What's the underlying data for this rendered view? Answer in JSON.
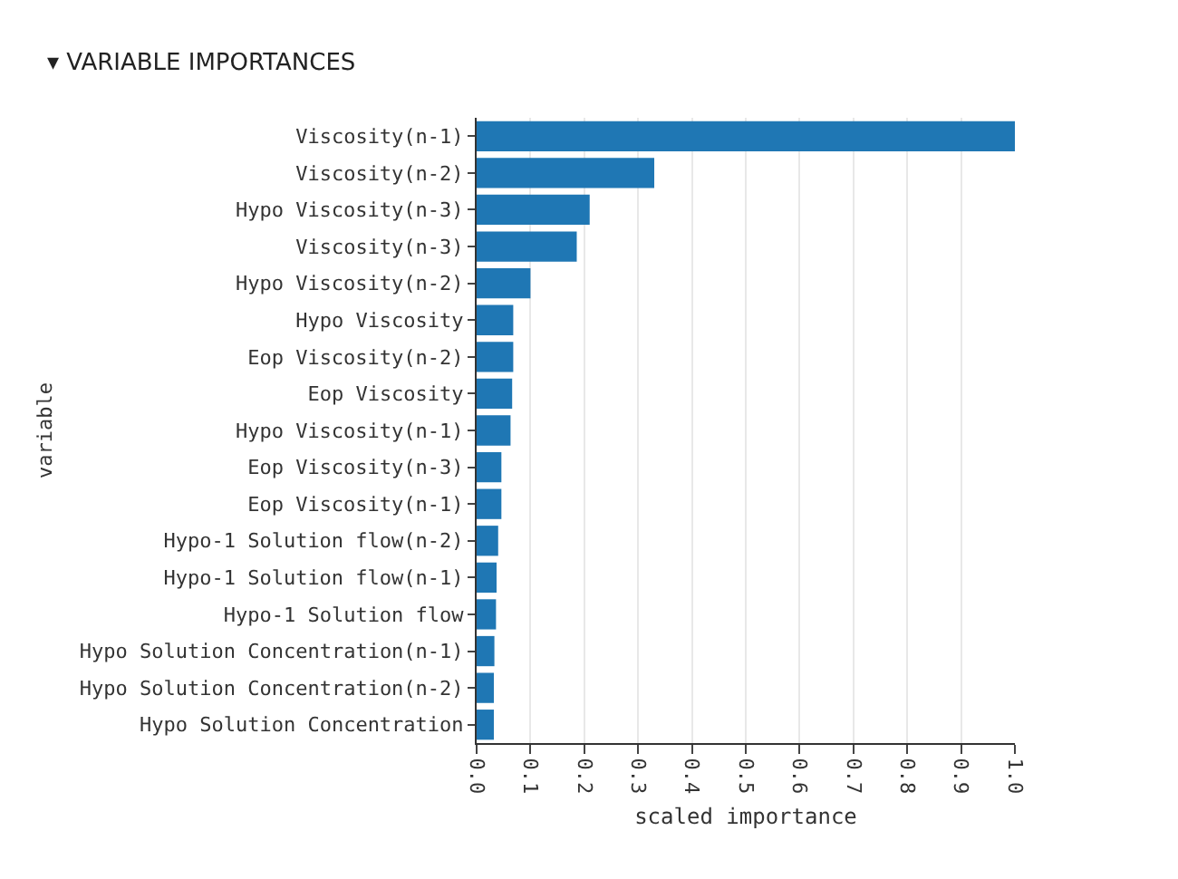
{
  "chart_data": {
    "type": "bar",
    "orientation": "horizontal",
    "title": "▾ VARIABLE IMPORTANCES",
    "xlabel": "scaled importance",
    "ylabel": "variable",
    "categories": [
      "Viscosity(n-1)",
      "Viscosity(n-2)",
      "Hypo Viscosity(n-3)",
      "Viscosity(n-3)",
      "Hypo Viscosity(n-2)",
      "Hypo Viscosity",
      "Eop Viscosity(n-2)",
      "Eop Viscosity",
      "Hypo Viscosity(n-1)",
      "Eop Viscosity(n-3)",
      "Eop Viscosity(n-1)",
      "Hypo-1 Solution flow(n-2)",
      "Hypo-1 Solution flow(n-1)",
      "Hypo-1 Solution flow",
      "Hypo Solution Concentration(n-1)",
      "Hypo Solution Concentration(n-2)",
      "Hypo Solution Concentration"
    ],
    "values": [
      1.0,
      0.33,
      0.21,
      0.186,
      0.1,
      0.068,
      0.068,
      0.066,
      0.063,
      0.046,
      0.046,
      0.04,
      0.037,
      0.036,
      0.033,
      0.032,
      0.032
    ],
    "color": "#1f77b4",
    "xlim": [
      0,
      1.0
    ],
    "xticks": [
      {
        "value": 0,
        "label": "0.0"
      },
      0.1,
      0.2,
      0.3,
      0.4,
      0.5,
      0.6,
      0.7,
      0.8,
      0.9,
      {
        "value": 1.0,
        "label": "1.0"
      }
    ],
    "grid": "x"
  }
}
